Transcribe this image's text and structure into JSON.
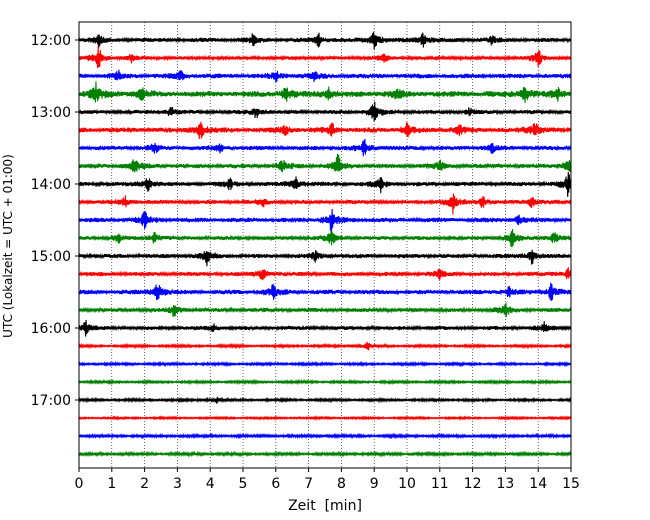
{
  "chart_data": {
    "type": "line",
    "title": "",
    "xlabel": "Zeit  [min]",
    "ylabel": "UTC (Lokalzeit = UTC + 01:00)",
    "xlim": [
      0,
      15
    ],
    "x_ticks": [
      0,
      1,
      2,
      3,
      4,
      5,
      6,
      7,
      8,
      9,
      10,
      11,
      12,
      13,
      14,
      15
    ],
    "x_tick_labels": [
      "0",
      "1",
      "2",
      "3",
      "4",
      "5",
      "6",
      "7",
      "8",
      "9",
      "10",
      "11",
      "12",
      "13",
      "14",
      "15"
    ],
    "x_grid": "dotted vertical lines at every minute",
    "y_tick_labels": [
      {
        "label": "12:00",
        "row": 0
      },
      {
        "label": "13:00",
        "row": 4
      },
      {
        "label": "14:00",
        "row": 8
      },
      {
        "label": "15:00",
        "row": 12
      },
      {
        "label": "16:00",
        "row": 16
      },
      {
        "label": "17:00",
        "row": 20
      }
    ],
    "colors": [
      "#000000",
      "#ff0000",
      "#0000ff",
      "#008000"
    ],
    "row_minutes": 15,
    "traces": [
      {
        "start": "12:00",
        "color": "#000000",
        "amplitude": 0.55,
        "events": [
          {
            "t": 0.6,
            "a": 1.3
          },
          {
            "t": 5.3,
            "a": 1.0
          },
          {
            "t": 7.3,
            "a": 1.3
          },
          {
            "t": 9.0,
            "a": 2.0
          },
          {
            "t": 10.5,
            "a": 1.6
          },
          {
            "t": 12.6,
            "a": 0.9
          }
        ]
      },
      {
        "start": "12:15",
        "color": "#ff0000",
        "amplitude": 0.45,
        "events": [
          {
            "t": 0.6,
            "a": 2.2
          },
          {
            "t": 1.6,
            "a": 0.8
          },
          {
            "t": 9.3,
            "a": 0.9
          },
          {
            "t": 14.0,
            "a": 2.0
          }
        ]
      },
      {
        "start": "12:30",
        "color": "#0000ff",
        "amplitude": 0.6,
        "events": [
          {
            "t": 1.2,
            "a": 1.0
          },
          {
            "t": 3.1,
            "a": 1.2
          },
          {
            "t": 6.0,
            "a": 1.0
          },
          {
            "t": 7.2,
            "a": 1.0
          }
        ]
      },
      {
        "start": "12:45",
        "color": "#008000",
        "amplitude": 0.75,
        "events": [
          {
            "t": 0.5,
            "a": 2.2
          },
          {
            "t": 1.9,
            "a": 1.6
          },
          {
            "t": 6.3,
            "a": 1.6
          },
          {
            "t": 7.6,
            "a": 1.4
          },
          {
            "t": 9.7,
            "a": 1.2
          },
          {
            "t": 13.6,
            "a": 1.8
          },
          {
            "t": 14.6,
            "a": 1.1
          }
        ]
      },
      {
        "start": "13:00",
        "color": "#000000",
        "amplitude": 0.5,
        "events": [
          {
            "t": 2.8,
            "a": 1.1
          },
          {
            "t": 5.4,
            "a": 1.2
          },
          {
            "t": 9.0,
            "a": 2.4
          },
          {
            "t": 11.9,
            "a": 0.9
          }
        ]
      },
      {
        "start": "13:15",
        "color": "#ff0000",
        "amplitude": 0.65,
        "events": [
          {
            "t": 3.7,
            "a": 2.0
          },
          {
            "t": 6.3,
            "a": 1.0
          },
          {
            "t": 7.7,
            "a": 1.4
          },
          {
            "t": 10.0,
            "a": 1.4
          },
          {
            "t": 11.6,
            "a": 1.1
          },
          {
            "t": 13.9,
            "a": 2.0
          }
        ]
      },
      {
        "start": "13:30",
        "color": "#0000ff",
        "amplitude": 0.55,
        "events": [
          {
            "t": 2.3,
            "a": 1.2
          },
          {
            "t": 4.3,
            "a": 1.0
          },
          {
            "t": 8.7,
            "a": 1.8
          },
          {
            "t": 12.6,
            "a": 0.9
          }
        ]
      },
      {
        "start": "13:45",
        "color": "#008000",
        "amplitude": 0.6,
        "events": [
          {
            "t": 1.7,
            "a": 1.6
          },
          {
            "t": 6.2,
            "a": 1.2
          },
          {
            "t": 7.9,
            "a": 2.2
          },
          {
            "t": 11.0,
            "a": 1.0
          },
          {
            "t": 14.9,
            "a": 1.8
          }
        ]
      },
      {
        "start": "14:00",
        "color": "#000000",
        "amplitude": 0.55,
        "events": [
          {
            "t": 2.1,
            "a": 1.6
          },
          {
            "t": 4.6,
            "a": 1.0
          },
          {
            "t": 6.6,
            "a": 1.5
          },
          {
            "t": 9.2,
            "a": 1.6
          },
          {
            "t": 14.9,
            "a": 2.4
          }
        ]
      },
      {
        "start": "14:15",
        "color": "#ff0000",
        "amplitude": 0.5,
        "events": [
          {
            "t": 1.4,
            "a": 1.2
          },
          {
            "t": 5.6,
            "a": 0.9
          },
          {
            "t": 11.4,
            "a": 2.2
          },
          {
            "t": 12.3,
            "a": 1.2
          },
          {
            "t": 13.8,
            "a": 1.2
          }
        ]
      },
      {
        "start": "14:30",
        "color": "#0000ff",
        "amplitude": 0.6,
        "events": [
          {
            "t": 2.0,
            "a": 1.8
          },
          {
            "t": 7.7,
            "a": 2.2
          },
          {
            "t": 13.4,
            "a": 0.9
          }
        ]
      },
      {
        "start": "14:45",
        "color": "#008000",
        "amplitude": 0.5,
        "events": [
          {
            "t": 1.2,
            "a": 1.0
          },
          {
            "t": 2.3,
            "a": 1.3
          },
          {
            "t": 7.7,
            "a": 1.6
          },
          {
            "t": 13.2,
            "a": 1.8
          },
          {
            "t": 14.5,
            "a": 1.4
          }
        ]
      },
      {
        "start": "15:00",
        "color": "#000000",
        "amplitude": 0.55,
        "events": [
          {
            "t": 3.9,
            "a": 1.8
          },
          {
            "t": 7.2,
            "a": 1.0
          },
          {
            "t": 13.8,
            "a": 1.6
          }
        ]
      },
      {
        "start": "15:15",
        "color": "#ff0000",
        "amplitude": 0.55,
        "events": [
          {
            "t": 5.6,
            "a": 1.4
          },
          {
            "t": 11.0,
            "a": 1.1
          },
          {
            "t": 14.9,
            "a": 1.2
          }
        ]
      },
      {
        "start": "15:30",
        "color": "#0000ff",
        "amplitude": 0.6,
        "events": [
          {
            "t": 2.4,
            "a": 2.0
          },
          {
            "t": 5.9,
            "a": 1.6
          },
          {
            "t": 13.1,
            "a": 1.0
          },
          {
            "t": 14.4,
            "a": 1.8
          }
        ]
      },
      {
        "start": "15:45",
        "color": "#008000",
        "amplitude": 0.5,
        "events": [
          {
            "t": 2.9,
            "a": 1.3
          },
          {
            "t": 13.0,
            "a": 1.8
          }
        ]
      },
      {
        "start": "16:00",
        "color": "#000000",
        "amplitude": 0.5,
        "events": [
          {
            "t": 0.2,
            "a": 1.6
          },
          {
            "t": 4.1,
            "a": 1.0
          },
          {
            "t": 14.2,
            "a": 1.2
          }
        ]
      },
      {
        "start": "16:15",
        "color": "#ff0000",
        "amplitude": 0.3,
        "events": [
          {
            "t": 8.8,
            "a": 1.0
          }
        ]
      },
      {
        "start": "16:30",
        "color": "#0000ff",
        "amplitude": 0.3,
        "events": []
      },
      {
        "start": "16:45",
        "color": "#008000",
        "amplitude": 0.3,
        "events": []
      },
      {
        "start": "17:00",
        "color": "#000000",
        "amplitude": 0.3,
        "events": [
          {
            "t": 4.2,
            "a": 0.6
          }
        ]
      },
      {
        "start": "17:15",
        "color": "#ff0000",
        "amplitude": 0.25,
        "events": []
      },
      {
        "start": "17:30",
        "color": "#0000ff",
        "amplitude": 0.35,
        "events": []
      },
      {
        "start": "17:45",
        "color": "#008000",
        "amplitude": 0.35,
        "events": []
      }
    ]
  }
}
